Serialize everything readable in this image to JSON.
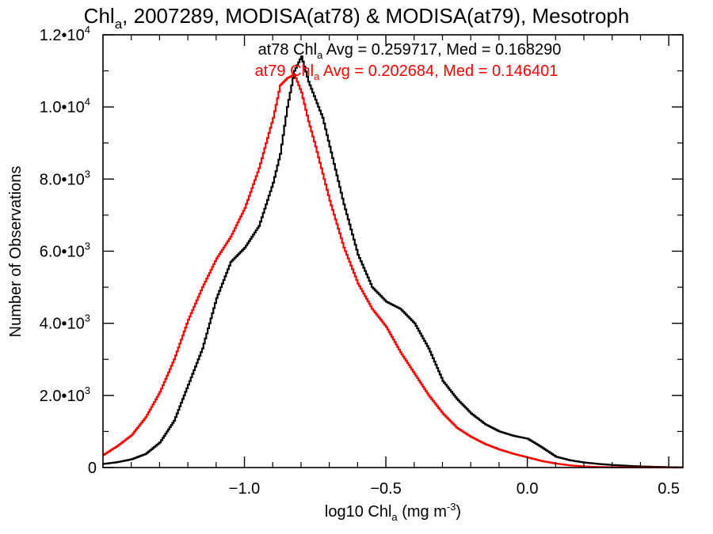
{
  "chart_data": {
    "type": "line",
    "title": {
      "prefix": "Chl",
      "sub": "a",
      "suffix": ", 2007289, MODISA(at78) & MODISA(at79), Mesotroph"
    },
    "xlabel": {
      "prefix": "log10 Chl",
      "sub": "a",
      "middle": " (mg m",
      "sup": "-3",
      "suffix": ")"
    },
    "ylabel": "Number of Observations",
    "xlim": [
      -1.5,
      0.55
    ],
    "ylim": [
      0,
      12000
    ],
    "x_ticks": [
      {
        "value": -1.0,
        "label": "−1.0"
      },
      {
        "value": -0.5,
        "label": "−0.5"
      },
      {
        "value": 0.0,
        "label": "0.0"
      },
      {
        "value": 0.5,
        "label": "0.5"
      }
    ],
    "y_ticks": [
      {
        "value": 0,
        "mant": "0",
        "exp": ""
      },
      {
        "value": 2000,
        "mant": "2.0•10",
        "exp": "3"
      },
      {
        "value": 4000,
        "mant": "4.0•10",
        "exp": "3"
      },
      {
        "value": 6000,
        "mant": "6.0•10",
        "exp": "3"
      },
      {
        "value": 8000,
        "mant": "8.0•10",
        "exp": "3"
      },
      {
        "value": 10000,
        "mant": "1.0•10",
        "exp": "4"
      },
      {
        "value": 12000,
        "mant": "1.2•10",
        "exp": "4"
      }
    ],
    "legend": [
      {
        "prefix": "at78 Chl",
        "sub": "a",
        "suffix": " Avg = 0.259717, Med = 0.168290",
        "color": "#000000"
      },
      {
        "prefix": "at79 Chl",
        "sub": "a",
        "suffix": " Avg = 0.202684, Med = 0.146401",
        "color": "#ff0000"
      }
    ],
    "legend_position": "top-right",
    "series": [
      {
        "color": "#000000",
        "x": [
          -1.5,
          -1.45,
          -1.4,
          -1.35,
          -1.3,
          -1.25,
          -1.2,
          -1.15,
          -1.1,
          -1.05,
          -1.0,
          -0.95,
          -0.9,
          -0.875,
          -0.85,
          -0.825,
          -0.8,
          -0.775,
          -0.75,
          -0.725,
          -0.7,
          -0.65,
          -0.6,
          -0.55,
          -0.5,
          -0.45,
          -0.4,
          -0.35,
          -0.3,
          -0.25,
          -0.2,
          -0.15,
          -0.1,
          -0.05,
          0.0,
          0.05,
          0.1,
          0.15,
          0.2,
          0.25,
          0.3,
          0.35,
          0.4,
          0.45,
          0.5,
          0.55
        ],
        "values": [
          100,
          150,
          230,
          380,
          700,
          1300,
          2300,
          3300,
          4700,
          5700,
          6100,
          6700,
          7900,
          8700,
          10000,
          11000,
          11400,
          10700,
          10200,
          9700,
          8900,
          7300,
          5900,
          5000,
          4600,
          4400,
          4000,
          3300,
          2400,
          1900,
          1500,
          1200,
          1000,
          880,
          800,
          560,
          300,
          200,
          140,
          100,
          70,
          50,
          30,
          20,
          10,
          5
        ]
      },
      {
        "color": "#ff0000",
        "x": [
          -1.5,
          -1.45,
          -1.4,
          -1.35,
          -1.3,
          -1.25,
          -1.2,
          -1.15,
          -1.1,
          -1.05,
          -1.0,
          -0.95,
          -0.9,
          -0.875,
          -0.85,
          -0.825,
          -0.8,
          -0.775,
          -0.75,
          -0.7,
          -0.65,
          -0.6,
          -0.55,
          -0.5,
          -0.45,
          -0.4,
          -0.35,
          -0.3,
          -0.25,
          -0.2,
          -0.15,
          -0.1,
          -0.05,
          0.0,
          0.05,
          0.1,
          0.15,
          0.2,
          0.25,
          0.3,
          0.35,
          0.4,
          0.45,
          0.5,
          0.55
        ],
        "values": [
          350,
          600,
          900,
          1400,
          2100,
          3000,
          4100,
          5000,
          5800,
          6400,
          7200,
          8300,
          9700,
          10600,
          10800,
          10900,
          10400,
          9600,
          8900,
          7400,
          6100,
          5100,
          4400,
          3900,
          3200,
          2600,
          2000,
          1500,
          1100,
          850,
          650,
          500,
          380,
          280,
          180,
          110,
          60,
          30,
          15,
          8,
          5,
          3,
          2,
          1,
          0
        ]
      }
    ]
  }
}
